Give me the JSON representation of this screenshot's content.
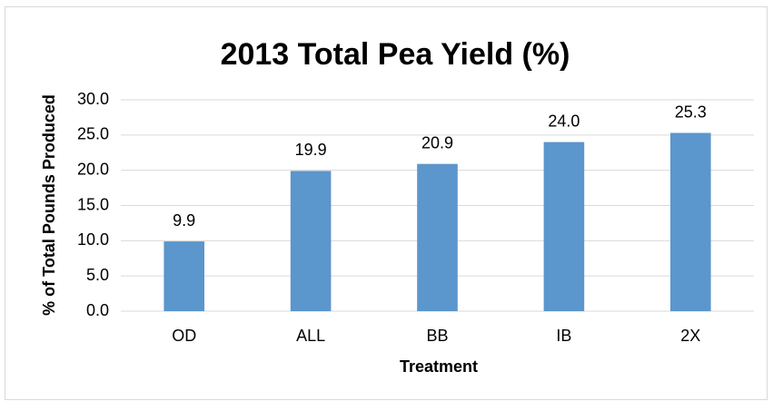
{
  "chart_data": {
    "type": "bar",
    "title": "2013 Total Pea Yield (%)",
    "x_label": "Treatment",
    "y_label": "% of Total Pounds Produced",
    "categories": [
      "OD",
      "ALL",
      "BB",
      "IB",
      "2X"
    ],
    "values": [
      9.9,
      19.9,
      20.9,
      24.0,
      25.3
    ],
    "value_labels": [
      "9.9",
      "19.9",
      "20.9",
      "24.0",
      "25.3"
    ],
    "color": "#5b96cc",
    "ylim": [
      0,
      30
    ],
    "yticks": [
      {
        "value": 0,
        "label": "0.0"
      },
      {
        "value": 5,
        "label": "5.0"
      },
      {
        "value": 10,
        "label": "10.0"
      },
      {
        "value": 15,
        "label": "15.0"
      },
      {
        "value": 20,
        "label": "20.0"
      },
      {
        "value": 25,
        "label": "25.0"
      },
      {
        "value": 30,
        "label": "30.0"
      }
    ],
    "grid": true
  }
}
